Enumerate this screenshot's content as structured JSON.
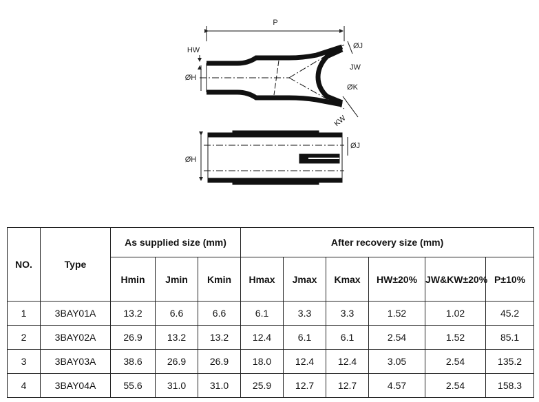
{
  "diagram": {
    "labels": {
      "p": "P",
      "hw": "HW",
      "oh_top": "ØH",
      "oj_top": "ØJ",
      "jw": "JW",
      "ok": "ØK",
      "kw": "KW",
      "oj_bottom": "ØJ",
      "oh_bottom": "ØH"
    }
  },
  "table": {
    "header": {
      "no": "NO.",
      "type": "Type",
      "supplied": "As supplied size (mm)",
      "recovery": "After recovery size (mm)",
      "columns": [
        "Hmin",
        "Jmin",
        "Kmin",
        "Hmax",
        "Jmax",
        "Kmax",
        "HW±20%",
        "JW&KW±20%",
        "P±10%"
      ]
    },
    "rows": [
      [
        "1",
        "3BAY01A",
        "13.2",
        "6.6",
        "6.6",
        "6.1",
        "3.3",
        "3.3",
        "1.52",
        "1.02",
        "45.2"
      ],
      [
        "2",
        "3BAY02A",
        "26.9",
        "13.2",
        "13.2",
        "12.4",
        "6.1",
        "6.1",
        "2.54",
        "1.52",
        "85.1"
      ],
      [
        "3",
        "3BAY03A",
        "38.6",
        "26.9",
        "26.9",
        "18.0",
        "12.4",
        "12.4",
        "3.05",
        "2.54",
        "135.2"
      ],
      [
        "4",
        "3BAY04A",
        "55.6",
        "31.0",
        "31.0",
        "25.9",
        "12.7",
        "12.7",
        "4.57",
        "2.54",
        "158.3"
      ]
    ]
  }
}
